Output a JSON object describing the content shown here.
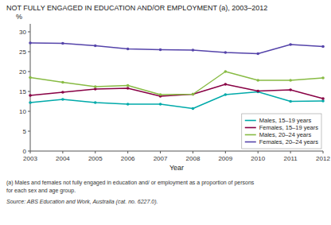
{
  "chart_data": {
    "type": "line",
    "title": "NOT FULLY ENGAGED IN EDUCATION AND/OR EMPLOYMENT (a),  2003–2012",
    "x_label": "Year",
    "y_label": "%",
    "x": [
      2003,
      2004,
      2005,
      2006,
      2007,
      2008,
      2009,
      2010,
      2011,
      2012
    ],
    "series": [
      {
        "name": "Males, 15–19 years",
        "color": "#00AAAA",
        "values": [
          12.2,
          13.0,
          12.2,
          11.8,
          11.8,
          10.7,
          14.2,
          14.9,
          12.5,
          12.6
        ]
      },
      {
        "name": "Females, 15–19 years",
        "color": "#880044",
        "values": [
          14.0,
          14.8,
          15.6,
          15.8,
          13.8,
          14.3,
          16.8,
          15.1,
          15.4,
          13.2
        ]
      },
      {
        "name": "Males, 20–24 years",
        "color": "#88BB44",
        "values": [
          18.5,
          17.3,
          16.2,
          16.5,
          14.2,
          14.3,
          20.0,
          17.8,
          17.8,
          18.4
        ]
      },
      {
        "name": "Females, 20–24 years",
        "color": "#5544AA",
        "values": [
          27.2,
          27.1,
          26.5,
          25.7,
          25.5,
          25.4,
          24.8,
          24.5,
          26.8,
          26.3
        ]
      }
    ],
    "xlim": [
      2003,
      2012
    ],
    "xticks": [
      2003,
      2004,
      2005,
      2006,
      2007,
      2008,
      2009,
      2010,
      2011,
      2012
    ],
    "ylim": [
      0,
      32
    ],
    "yticks": [
      0,
      5,
      10,
      15,
      20,
      25,
      30
    ],
    "grid": false,
    "legend": "lower right",
    "marker": "circle",
    "annotations": [
      "(a) Males and females not fully engaged in education and/ or employment as a proportion of persons",
      "for each sex and age group.",
      "Source: ABS Education and Work, Australia (cat.  no.  6227.0)."
    ]
  }
}
